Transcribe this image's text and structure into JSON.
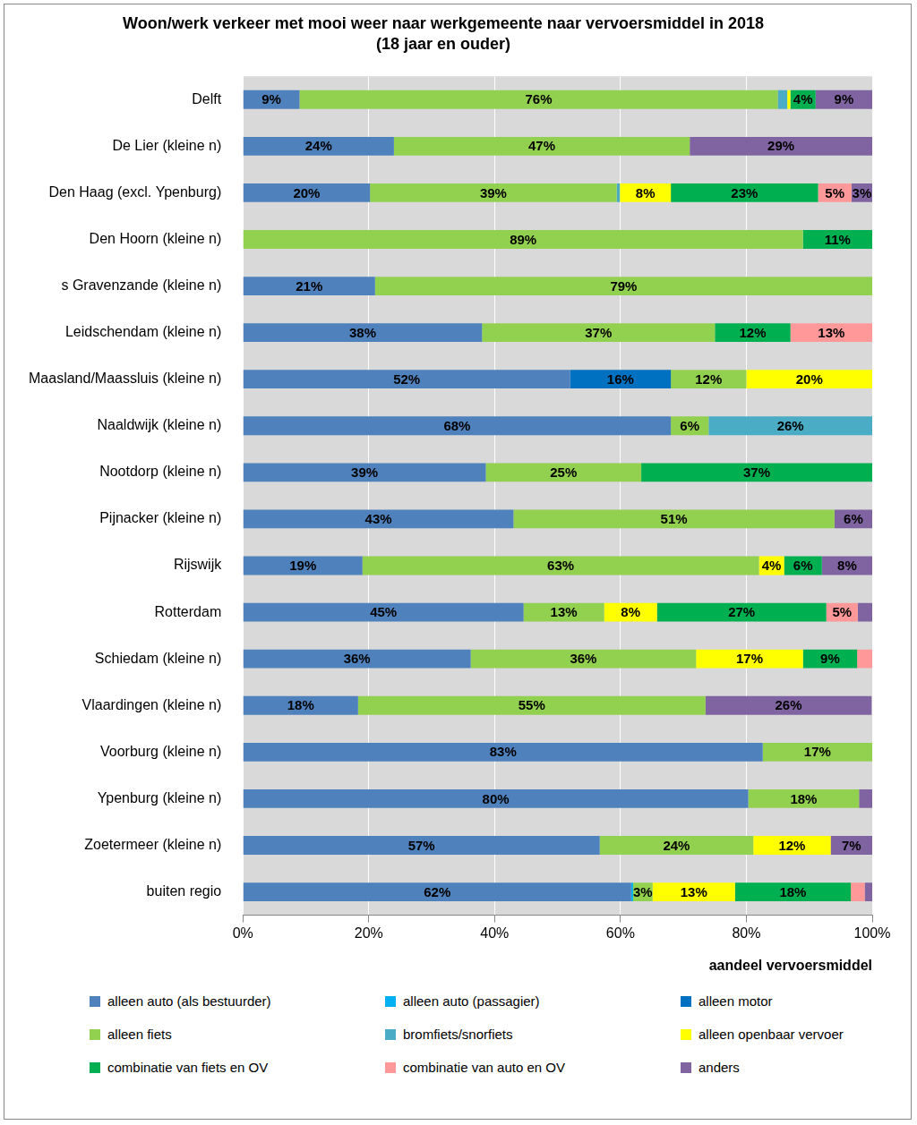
{
  "chart_data": {
    "type": "bar",
    "title": "Woon/werk verkeer met mooi weer naar werkgemeente naar vervoersmiddel in 2018",
    "subtitle": "(18 jaar en ouder)",
    "x_label": "aandeel vervoersmiddel",
    "orientation": "horizontal",
    "stacked": true,
    "data_labels": true,
    "grid": true,
    "legend": "bottom",
    "xlim": [
      0,
      100
    ],
    "xticks": [
      {
        "value": 0,
        "label": "0%"
      },
      {
        "value": 20,
        "label": "20%"
      },
      {
        "value": 40,
        "label": "40%"
      },
      {
        "value": 60,
        "label": "60%"
      },
      {
        "value": 80,
        "label": "80%"
      },
      {
        "value": 100,
        "label": "100%"
      }
    ],
    "categories": [
      "Delft",
      "De Lier (kleine n)",
      "Den Haag (excl. Ypenburg)",
      "Den Hoorn (kleine n)",
      "s Gravenzande (kleine n)",
      "Leidschendam (kleine n)",
      "Maasland/Maassluis (kleine n)",
      "Naaldwijk (kleine n)",
      "Nootdorp (kleine n)",
      "Pijnacker (kleine n)",
      "Rijswijk",
      "Rotterdam",
      "Schiedam (kleine n)",
      "Vlaardingen (kleine n)",
      "Voorburg (kleine n)",
      "Ypenburg (kleine n)",
      "Zoetermeer (kleine n)",
      "buiten regio"
    ],
    "series": [
      {
        "name": "alleen auto (als bestuurder)",
        "color": "#4f81bd",
        "values": [
          9,
          24,
          20.2,
          0,
          21,
          38,
          52,
          68,
          38.6,
          43,
          19,
          44.6,
          36.2,
          18.3,
          82.6,
          80.3,
          56.7,
          61.7
        ],
        "value_labels": [
          "9%",
          "24%",
          "20%",
          null,
          "21%",
          "38%",
          "52%",
          "68%",
          "39%",
          "43%",
          "19%",
          "45%",
          "36%",
          "18%",
          "83%",
          "80%",
          "57%",
          "62%"
        ]
      },
      {
        "name": "alleen auto (passagier)",
        "color": "#00b0f0",
        "values": [
          0,
          0,
          0,
          0,
          0,
          0,
          0,
          0,
          0,
          0,
          0,
          0,
          0,
          0,
          0,
          0,
          0,
          0.3
        ],
        "value_labels": [
          null,
          null,
          null,
          null,
          null,
          null,
          null,
          null,
          null,
          null,
          null,
          null,
          null,
          null,
          null,
          null,
          null,
          null
        ]
      },
      {
        "name": "alleen motor",
        "color": "#0070c0",
        "values": [
          0,
          0,
          0,
          0,
          0,
          0,
          16,
          0,
          0,
          0,
          0,
          0,
          0,
          0,
          0,
          0,
          0,
          0
        ],
        "value_labels": [
          null,
          null,
          null,
          null,
          null,
          null,
          "16%",
          null,
          null,
          null,
          null,
          null,
          null,
          null,
          null,
          null,
          null,
          null
        ]
      },
      {
        "name": "alleen fiets",
        "color": "#92d050",
        "values": [
          76,
          47,
          39.2,
          89,
          79,
          37,
          12,
          6,
          24.7,
          51,
          63,
          12.8,
          35.8,
          55.2,
          17.4,
          17.6,
          24.4,
          3.1
        ],
        "value_labels": [
          "76%",
          "47%",
          "39%",
          "89%",
          "79%",
          "37%",
          "12%",
          "6%",
          "25%",
          "51%",
          "63%",
          "13%",
          "36%",
          "55%",
          "17%",
          "18%",
          "24%",
          "3%"
        ]
      },
      {
        "name": "bromfiets/snorfiets",
        "color": "#4bacc6",
        "values": [
          1.5,
          0,
          0.5,
          0,
          0,
          0,
          0,
          26,
          0,
          0,
          0,
          0,
          0,
          0,
          0,
          0,
          0,
          0
        ],
        "value_labels": [
          null,
          null,
          null,
          null,
          null,
          null,
          null,
          "26%",
          null,
          null,
          null,
          null,
          null,
          null,
          null,
          null,
          null,
          null
        ]
      },
      {
        "name": "alleen openbaar vervoer",
        "color": "#ffff00",
        "values": [
          0.5,
          0,
          8.1,
          0,
          0,
          0,
          20,
          0,
          0,
          0,
          4,
          8.4,
          17,
          0,
          0,
          0,
          12.3,
          13.1
        ],
        "value_labels": [
          null,
          null,
          "8%",
          null,
          null,
          null,
          "20%",
          null,
          null,
          null,
          "4%",
          "8%",
          "17%",
          null,
          null,
          null,
          "12%",
          "13%"
        ]
      },
      {
        "name": "combinatie van fiets en OV",
        "color": "#00b050",
        "values": [
          4,
          0,
          23.4,
          11,
          0,
          12,
          0,
          0,
          36.7,
          0,
          6,
          26.9,
          8.6,
          0,
          0,
          0,
          0,
          18.4
        ],
        "value_labels": [
          "4%",
          null,
          "23%",
          "11%",
          null,
          "12%",
          null,
          null,
          "37%",
          null,
          "6%",
          "27%",
          "9%",
          null,
          null,
          null,
          null,
          "18%"
        ]
      },
      {
        "name": "combinatie van auto en OV",
        "color": "#ff9999",
        "values": [
          0,
          0,
          5.3,
          0,
          0,
          13,
          0,
          0,
          0,
          0,
          0,
          5,
          2.4,
          0,
          0,
          0,
          0,
          2.2
        ],
        "value_labels": [
          null,
          null,
          "5%",
          null,
          null,
          "13%",
          null,
          null,
          null,
          null,
          null,
          "5%",
          null,
          null,
          null,
          null,
          null,
          null
        ]
      },
      {
        "name": "anders",
        "color": "#8064a2",
        "values": [
          9,
          29,
          3.3,
          0,
          0,
          0,
          0,
          0,
          0,
          6,
          8,
          2.3,
          0,
          26.4,
          0,
          2.1,
          6.6,
          1.2
        ],
        "value_labels": [
          "9%",
          "29%",
          "3%",
          null,
          null,
          null,
          null,
          null,
          null,
          "6%",
          "8%",
          null,
          null,
          "26%",
          null,
          null,
          "7%",
          null
        ]
      }
    ]
  }
}
